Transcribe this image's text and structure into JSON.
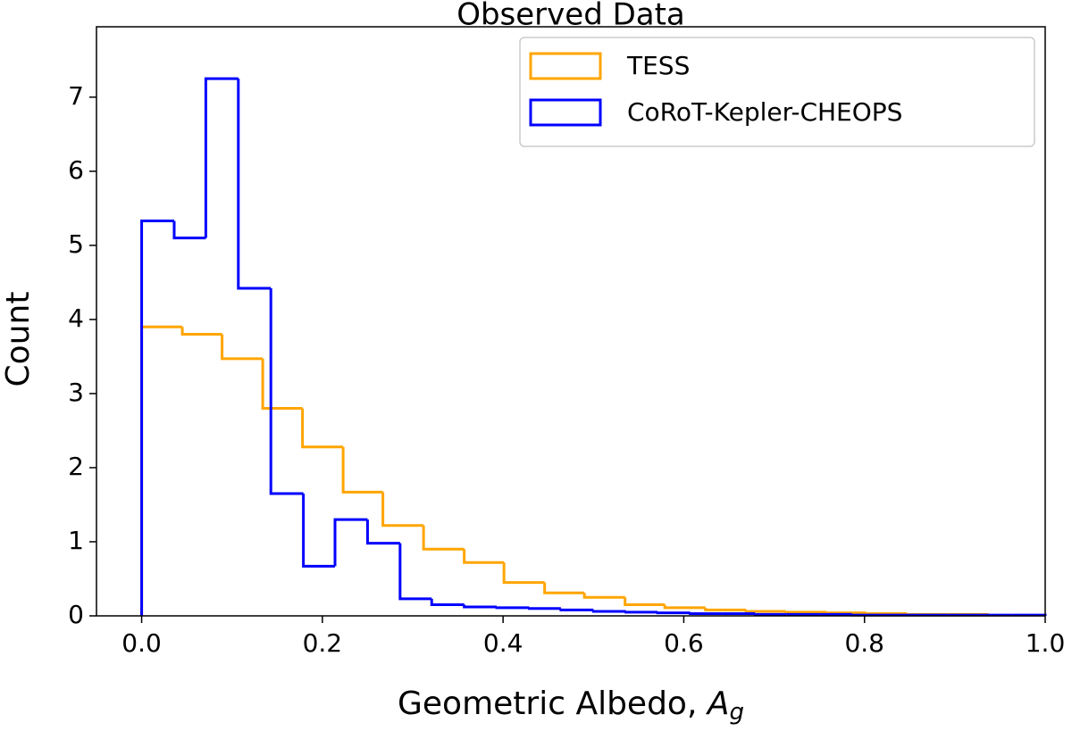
{
  "chart_data": {
    "type": "histogram",
    "title": "Observed Data",
    "x_label": "Geometric Albedo, Ag",
    "y_label": "Count",
    "xlim": [
      -0.05,
      1.0
    ],
    "ylim": [
      0,
      7.95
    ],
    "xticks": [
      {
        "value": 0,
        "label": "0.0"
      },
      0.2,
      0.4,
      0.6,
      0.8,
      {
        "value": 1,
        "label": "1.0"
      }
    ],
    "yticks": [
      0,
      1,
      2,
      3,
      4,
      5,
      6,
      7
    ],
    "legend": "upper right",
    "series": [
      {
        "name": "TESS",
        "color": "#ffa500",
        "bins": [
          0,
          0.045,
          0.089,
          0.134,
          0.178,
          0.223,
          0.267,
          0.312,
          0.357,
          0.401,
          0.446,
          0.49,
          0.535,
          0.579,
          0.624,
          0.669,
          0.713,
          0.758,
          0.802,
          0.847,
          0.891,
          0.936
        ],
        "values": [
          3.9,
          3.8,
          3.47,
          2.8,
          2.28,
          1.67,
          1.22,
          0.9,
          0.72,
          0.45,
          0.31,
          0.25,
          0.15,
          0.11,
          0.08,
          0.06,
          0.05,
          0.04,
          0.03,
          0.02,
          0.02
        ]
      },
      {
        "name": "CoRoT-Kepler-CHEOPS",
        "color": "#0000ff",
        "bins": [
          0,
          0.036,
          0.071,
          0.107,
          0.143,
          0.179,
          0.214,
          0.25,
          0.286,
          0.321,
          0.357,
          0.393,
          0.429,
          0.464,
          0.5,
          0.536,
          0.571,
          0.607,
          0.643,
          0.679,
          0.714,
          0.75,
          0.786,
          0.821,
          0.857,
          0.893,
          0.929,
          0.964,
          1.0
        ],
        "values": [
          5.33,
          5.1,
          7.25,
          4.42,
          1.65,
          0.67,
          1.3,
          0.98,
          0.23,
          0.15,
          0.12,
          0.11,
          0.1,
          0.08,
          0.06,
          0.05,
          0.04,
          0.03,
          0.03,
          0.02,
          0.02,
          0.02,
          0.01,
          0.01,
          0.01,
          0.01,
          0.01,
          0.01
        ]
      }
    ]
  }
}
